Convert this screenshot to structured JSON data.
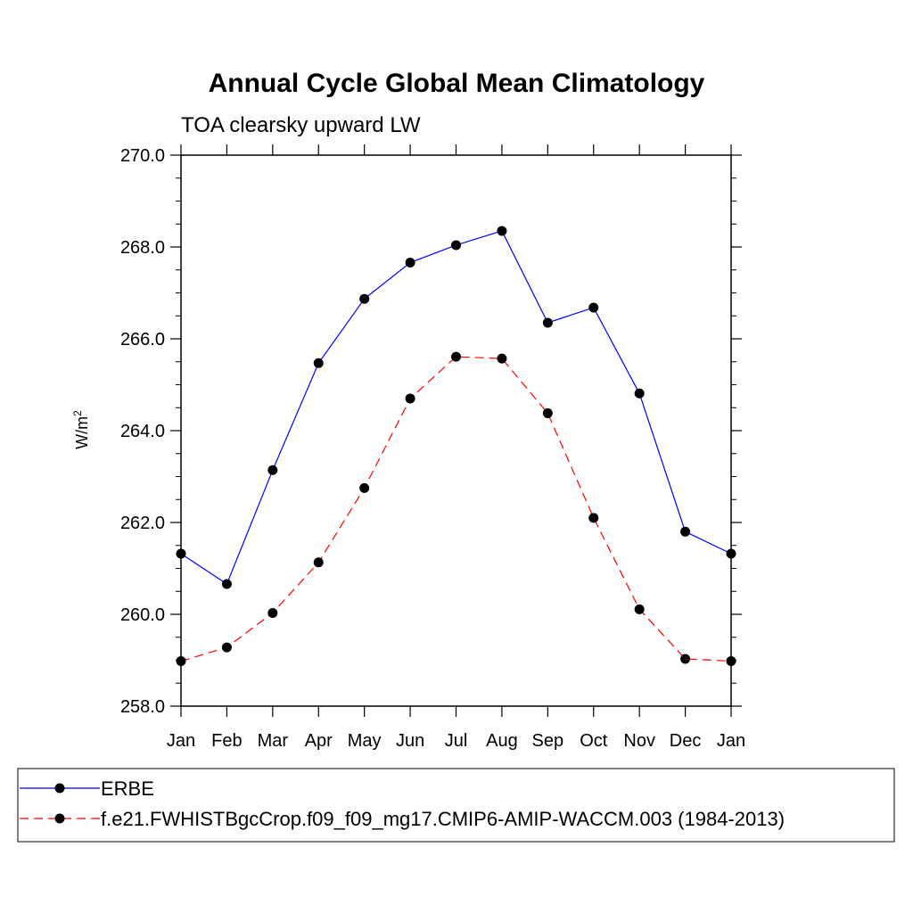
{
  "chart_data": {
    "type": "line",
    "title": "Annual Cycle Global Mean Climatology",
    "subtitle": "TOA clearsky upward LW",
    "ylabel": "W/m",
    "ylabel_superscript": "2",
    "ylim": [
      258.0,
      270.0
    ],
    "yticks": [
      "258.0",
      "260.0",
      "262.0",
      "264.0",
      "266.0",
      "268.0",
      "270.0"
    ],
    "ytick_values": [
      258,
      260,
      262,
      264,
      266,
      268,
      270
    ],
    "categories": [
      "Jan",
      "Feb",
      "Mar",
      "Apr",
      "May",
      "Jun",
      "Jul",
      "Aug",
      "Sep",
      "Oct",
      "Nov",
      "Dec",
      "Jan"
    ],
    "series": [
      {
        "name": "ERBE",
        "color": "#0000ff",
        "dashed": false,
        "values": [
          261.32,
          260.66,
          263.14,
          265.47,
          266.87,
          267.66,
          268.04,
          268.35,
          266.35,
          266.68,
          264.81,
          261.8,
          261.32
        ]
      },
      {
        "name": "f.e21.FWHISTBgcCrop.f09_f09_mg17.CMIP6-AMIP-WACCM.003 (1984-2013)",
        "color": "#ff0000",
        "dashed": true,
        "values": [
          258.98,
          259.28,
          260.03,
          261.13,
          262.75,
          264.7,
          265.61,
          265.57,
          264.38,
          262.1,
          260.11,
          259.03,
          258.98
        ]
      }
    ]
  }
}
